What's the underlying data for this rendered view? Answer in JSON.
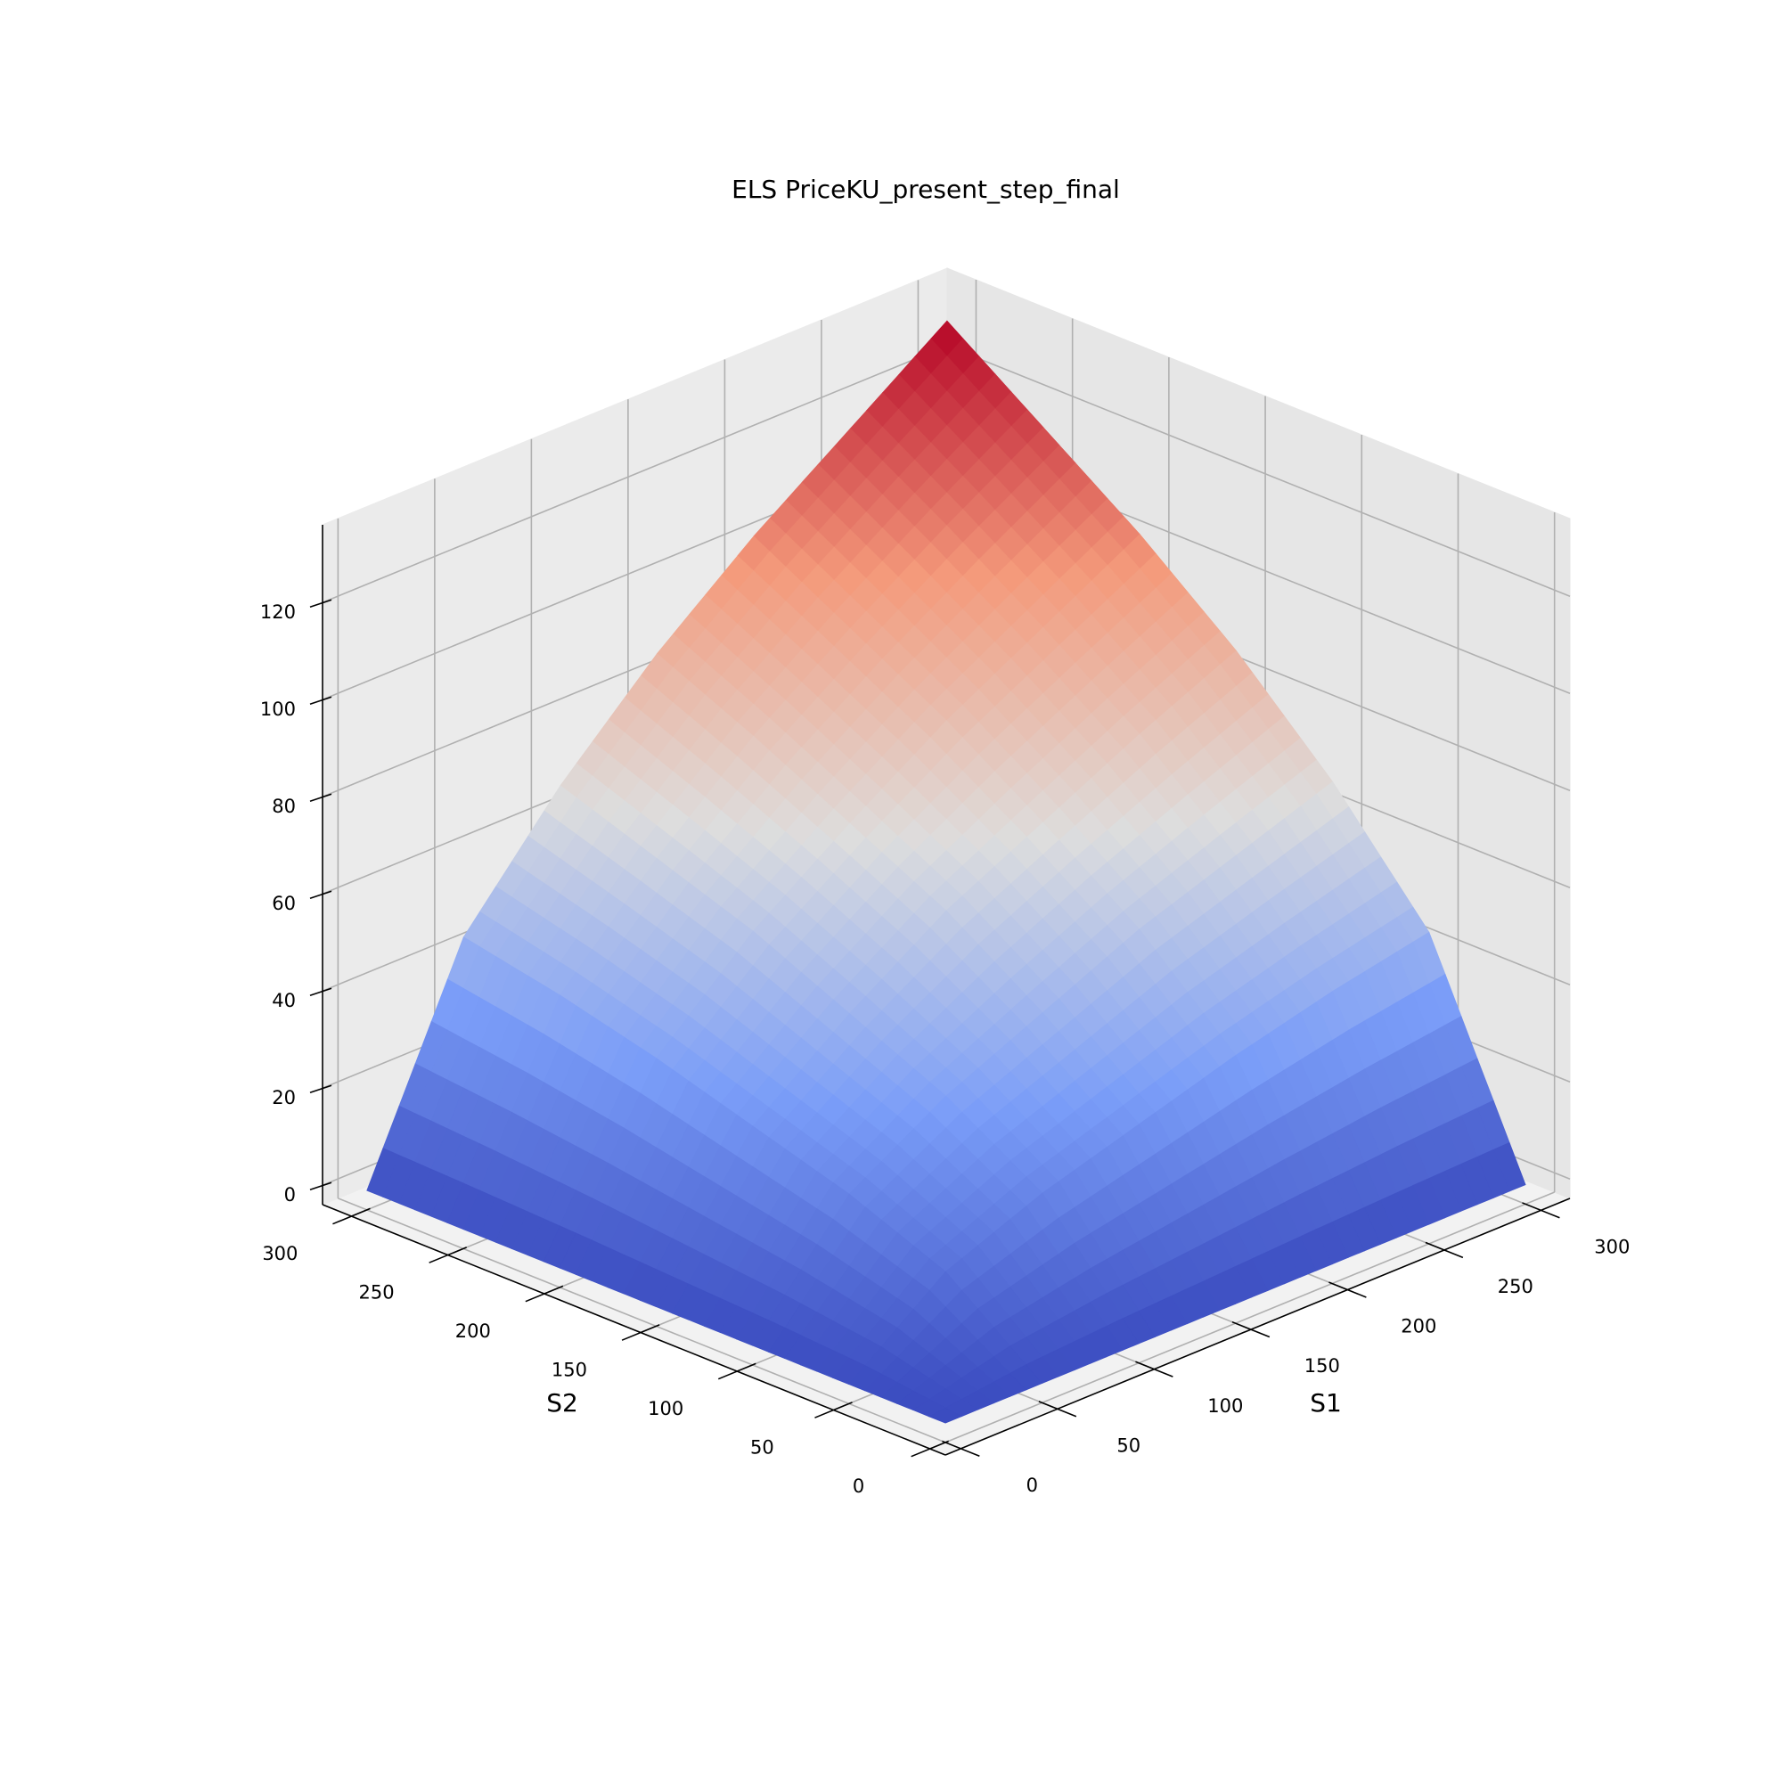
{
  "chart_data": {
    "type": "surface",
    "title": "ELS PriceKU_present_step_final",
    "xlabel": "S1",
    "ylabel": "S2",
    "x": [
      0,
      50,
      100,
      150,
      200,
      250,
      300
    ],
    "y": [
      0,
      50,
      100,
      150,
      200,
      250,
      300
    ],
    "z": [
      [
        0,
        0,
        0,
        0,
        0,
        0,
        0
      ],
      [
        0,
        15,
        23,
        29,
        35,
        40,
        44
      ],
      [
        0,
        23,
        35,
        44,
        53,
        60,
        67
      ],
      [
        0,
        29,
        44,
        57,
        67,
        77,
        86
      ],
      [
        0,
        35,
        53,
        67,
        80,
        91,
        102
      ],
      [
        0,
        40,
        60,
        77,
        91,
        104,
        116
      ],
      [
        0,
        44,
        67,
        86,
        102,
        116,
        130
      ]
    ],
    "xlim": [
      -8,
      315
    ],
    "ylim": [
      -8,
      315
    ],
    "zlim": [
      -4,
      136
    ],
    "xticks": [
      0,
      50,
      100,
      150,
      200,
      250,
      300
    ],
    "yticks": [
      0,
      50,
      100,
      150,
      200,
      250,
      300
    ],
    "zticks": [
      0,
      20,
      40,
      60,
      80,
      100,
      120
    ],
    "colormap": "coolwarm",
    "grid": true
  }
}
